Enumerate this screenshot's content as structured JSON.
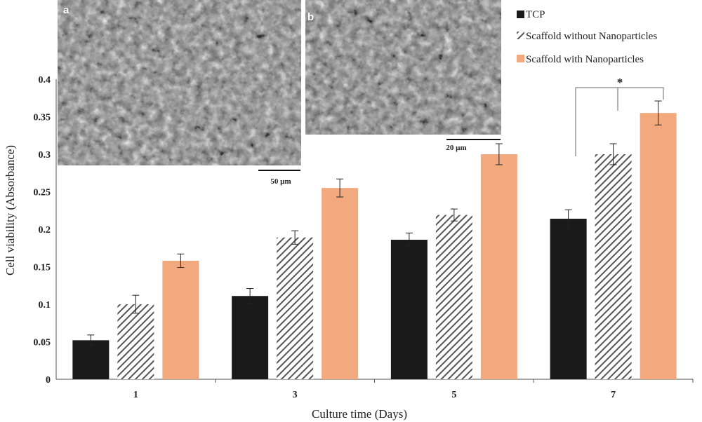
{
  "chart_data": {
    "type": "bar",
    "categories": [
      "1",
      "3",
      "5",
      "7"
    ],
    "xlabel": "Culture time (Days)",
    "ylabel": "Cell viability (Absorbance)",
    "ylim": [
      0,
      0.4
    ],
    "yticks": [
      "0",
      "0.05",
      "0.1",
      "0.15",
      "0.2",
      "0.25",
      "0.3",
      "0.35",
      "0.4"
    ],
    "grid": false,
    "legend_position": "top-right",
    "series": [
      {
        "name": "TCP",
        "values": [
          0.052,
          0.111,
          0.186,
          0.214
        ],
        "errors": [
          0.007,
          0.01,
          0.009,
          0.012
        ],
        "color": "#1a1a1a",
        "pattern": "solid"
      },
      {
        "name": "Scaffold without Nanoparticles",
        "values": [
          0.1,
          0.189,
          0.219,
          0.3
        ],
        "errors": [
          0.012,
          0.009,
          0.008,
          0.014
        ],
        "color": "#555555",
        "pattern": "diagonal-hatch"
      },
      {
        "name": "Scaffold with Nanoparticles",
        "values": [
          0.158,
          0.255,
          0.3,
          0.355
        ],
        "errors": [
          0.009,
          0.012,
          0.014,
          0.016
        ],
        "color": "#f2a97e",
        "pattern": "solid"
      }
    ],
    "annotations": [
      {
        "text": "*",
        "type": "significance-bracket",
        "category": "7"
      }
    ]
  },
  "insets": [
    {
      "letter": "a",
      "scale_label": "50 µm",
      "content": "SEM micrograph"
    },
    {
      "letter": "b",
      "scale_label": "20 µm",
      "content": "SEM micrograph"
    }
  ]
}
